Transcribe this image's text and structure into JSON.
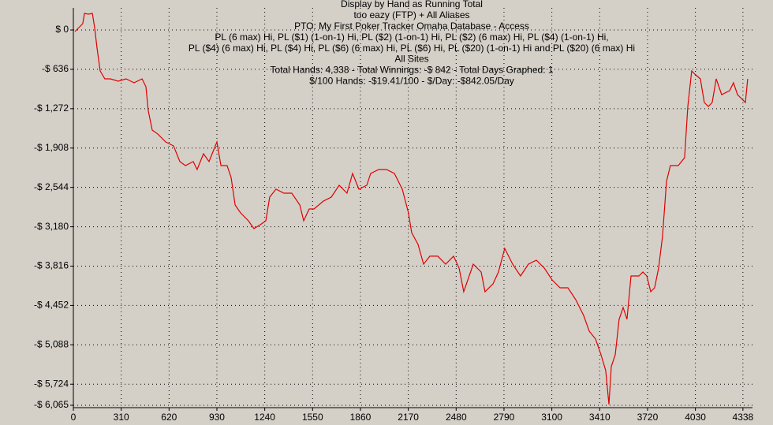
{
  "chart_data": {
    "type": "line",
    "title_lines": [
      "Display by Hand as Running Total",
      "too eazy (FTP) + All Aliases",
      "PTO: My First Poker Tracker Omaha Database - Access",
      "PL (6 max) Hi, PL ($1) (1-on-1) Hi, PL ($2) (1-on-1) Hi, PL ($2) (6 max) Hi, PL ($4) (1-on-1) Hi,",
      "PL ($4) (6 max) Hi, PL ($4) Hi, PL ($6) (6 max) Hi, PL ($6) Hi, PL ($20) (1-on-1) Hi and PL ($20) (6 max) Hi",
      "All Sites",
      "Total Hands: 4,338 - Total Winnings: -$ 842 - Total Days Graphed: 1",
      "$/100 Hands: -$19.41/100 - $/Day: -$842.05/Day"
    ],
    "x": [
      10,
      36,
      61,
      72,
      97,
      123,
      138,
      153,
      174,
      204,
      240,
      291,
      342,
      393,
      445,
      470,
      485,
      511,
      547,
      598,
      649,
      690,
      726,
      777,
      802,
      843,
      879,
      930,
      956,
      996,
      1022,
      1048,
      1083,
      1134,
      1170,
      1211,
      1247,
      1272,
      1313,
      1364,
      1415,
      1467,
      1492,
      1528,
      1559,
      1620,
      1671,
      1722,
      1773,
      1809,
      1850,
      1901,
      1926,
      1978,
      2029,
      2080,
      2131,
      2171,
      2192,
      2233,
      2269,
      2310,
      2361,
      2412,
      2463,
      2499,
      2529,
      2591,
      2642,
      2667,
      2719,
      2754,
      2795,
      2846,
      2897,
      2948,
      3000,
      3051,
      3102,
      3153,
      3204,
      3255,
      3306,
      3342,
      3383,
      3419,
      3449,
      3470,
      3485,
      3511,
      3536,
      3562,
      3587,
      3613,
      3664,
      3690,
      3715,
      3741,
      3766,
      3792,
      3817,
      3843,
      3868,
      3919,
      3960,
      3981,
      4006,
      4032,
      4062,
      4088,
      4114,
      4139,
      4165,
      4200,
      4252,
      4277,
      4303,
      4354,
      4369
    ],
    "series": [
      {
        "name": "Running Total",
        "color": "#e00000",
        "values": [
          -25,
          38,
          102,
          268,
          255,
          268,
          38,
          -280,
          -662,
          -790,
          -790,
          -828,
          -790,
          -853,
          -790,
          -917,
          -1299,
          -1618,
          -1681,
          -1809,
          -1873,
          -2127,
          -2191,
          -2127,
          -2255,
          -2000,
          -2127,
          -1809,
          -2191,
          -2191,
          -2382,
          -2828,
          -2955,
          -3083,
          -3210,
          -3147,
          -3083,
          -2701,
          -2573,
          -2637,
          -2637,
          -2828,
          -3083,
          -2892,
          -2892,
          -2765,
          -2701,
          -2510,
          -2637,
          -2319,
          -2573,
          -2510,
          -2319,
          -2255,
          -2255,
          -2319,
          -2573,
          -2955,
          -3274,
          -3465,
          -3784,
          -3656,
          -3656,
          -3784,
          -3656,
          -3847,
          -4230,
          -3784,
          -3911,
          -4230,
          -4102,
          -3911,
          -3529,
          -3784,
          -3975,
          -3784,
          -3720,
          -3847,
          -4039,
          -4166,
          -4166,
          -4357,
          -4612,
          -4867,
          -4994,
          -5249,
          -5503,
          -6051,
          -5440,
          -5249,
          -4676,
          -4485,
          -4676,
          -3975,
          -3975,
          -3911,
          -3975,
          -4230,
          -4166,
          -3847,
          -3338,
          -2446,
          -2191,
          -2191,
          -2064,
          -1236,
          -662,
          -726,
          -790,
          -1172,
          -1236,
          -1172,
          -790,
          -1045,
          -981,
          -853,
          -1045,
          -1172,
          -790
        ]
      }
    ],
    "xlim": [
      0,
      4400
    ],
    "xticks": [
      0,
      310,
      620,
      930,
      1240,
      1550,
      1860,
      2170,
      2480,
      2790,
      3100,
      3410,
      3720,
      4030,
      4338
    ],
    "ylim": [
      -6065,
      357
    ],
    "yticks": [
      {
        "value": 0,
        "label": "$ 0"
      },
      {
        "value": -636,
        "label": "-$ 636"
      },
      {
        "value": -1272,
        "label": "-$ 1,272"
      },
      {
        "value": -1908,
        "label": "-$ 1,908"
      },
      {
        "value": -2544,
        "label": "-$ 2,544"
      },
      {
        "value": -3180,
        "label": "-$ 3,180"
      },
      {
        "value": -3816,
        "label": "-$ 3,816"
      },
      {
        "value": -4452,
        "label": "-$ 4,452"
      },
      {
        "value": -5088,
        "label": "-$ 5,088"
      },
      {
        "value": -5724,
        "label": "-$ 5,724"
      },
      {
        "value": -6065,
        "label": "-$ 6,065"
      }
    ],
    "grid": true
  }
}
